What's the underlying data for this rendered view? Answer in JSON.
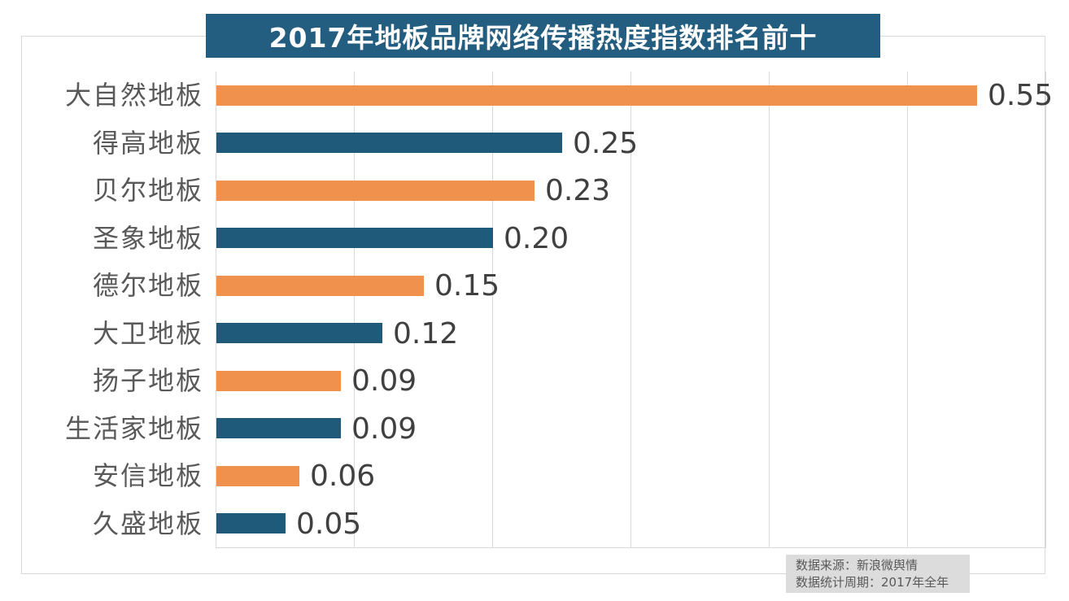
{
  "banner": {
    "title": "2017年地板品牌网络传播热度指数排名前十"
  },
  "source_box": {
    "lines": [
      "数据来源：新浪微舆情",
      "数据统计周期：2017年全年"
    ]
  },
  "colors": {
    "orange_bar": "#f0914d",
    "blue_bar": "#1f5a7b",
    "banner_bg": "#235d7f",
    "grid": "#d9d9d9",
    "category_text": "#595959",
    "value_text": "#404040",
    "source_bg": "#dcdcdc"
  },
  "chart_data": {
    "type": "bar",
    "orientation": "horizontal",
    "title": "2017年地板品牌网络传播热度指数排名前十",
    "categories": [
      "大自然地板",
      "得高地板",
      "贝尔地板",
      "圣象地板",
      "德尔地板",
      "大卫地板",
      "扬子地板",
      "生活家地板",
      "安信地板",
      "久盛地板"
    ],
    "values": [
      0.55,
      0.25,
      0.23,
      0.2,
      0.15,
      0.12,
      0.09,
      0.09,
      0.06,
      0.05
    ],
    "value_labels": [
      "0.55",
      "0.25",
      "0.23",
      "0.20",
      "0.15",
      "0.12",
      "0.09",
      "0.09",
      "0.06",
      "0.05"
    ],
    "bar_color_pattern": [
      "#f0914d",
      "#1f5a7b"
    ],
    "xlabel": "",
    "ylabel": "",
    "xlim": [
      0,
      0.6
    ],
    "gridline_interval": 0.1,
    "grid": true,
    "legend": false,
    "source_note": "数据来源：新浪微舆情 数据统计周期：2017年全年"
  }
}
